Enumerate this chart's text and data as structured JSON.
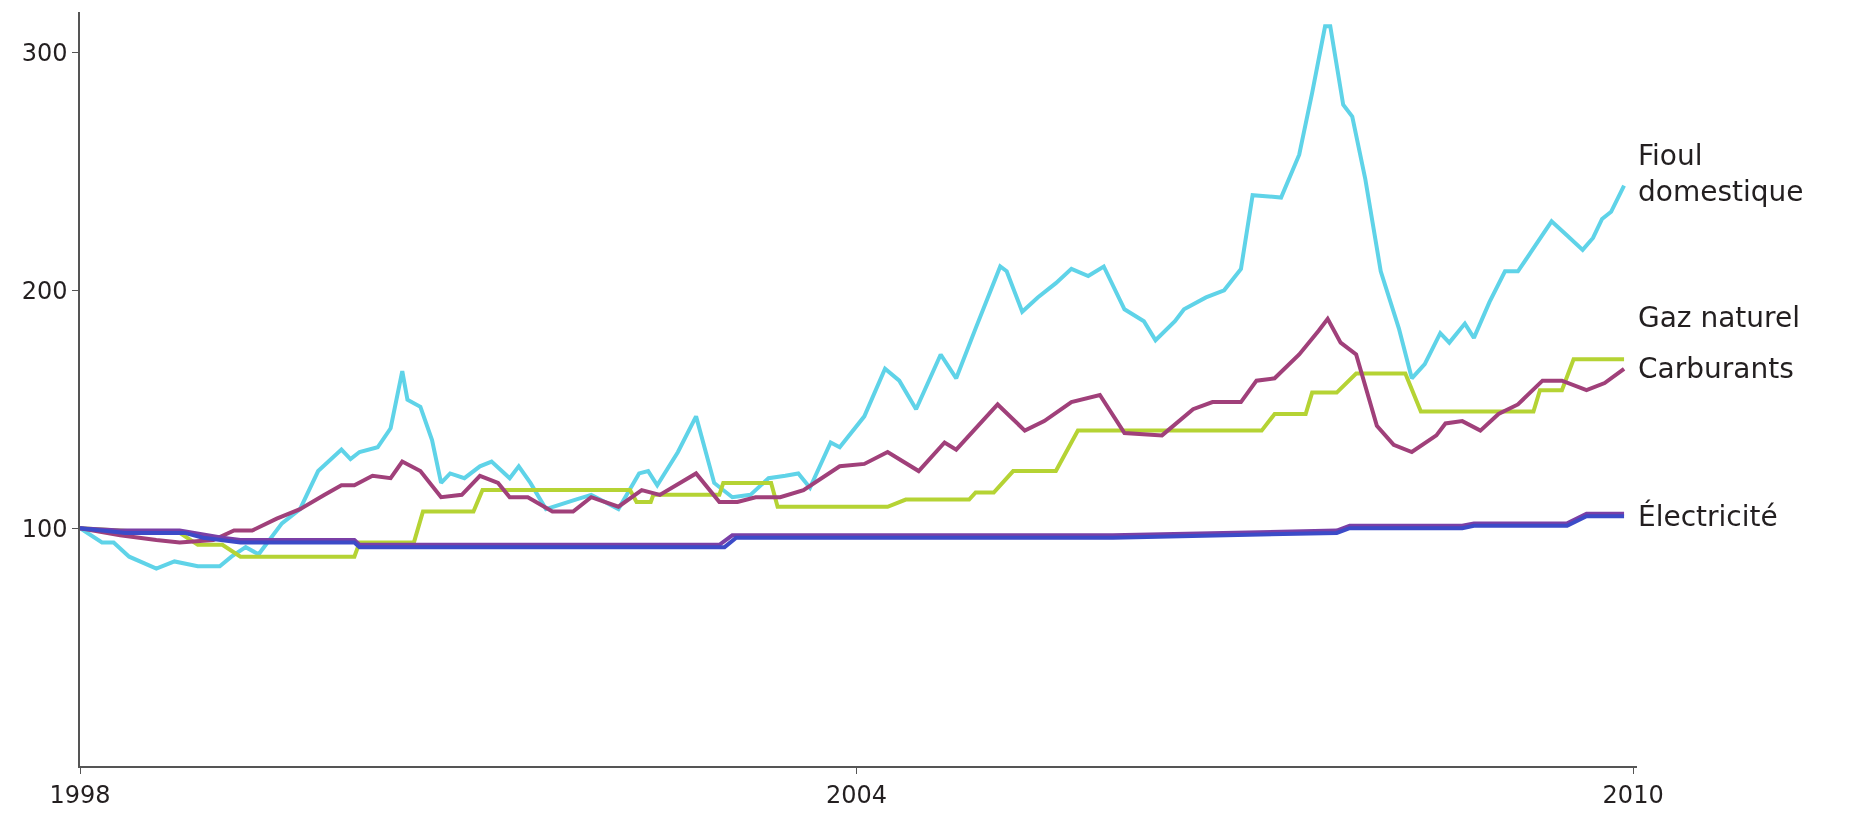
{
  "chart_data": {
    "type": "line",
    "xlim": [
      1998,
      2010.03
    ],
    "xticks": [
      1998,
      2004,
      2010
    ],
    "ylim": [
      0,
      317
    ],
    "yticks": [
      100,
      200,
      300
    ],
    "legend": false,
    "marker": "none",
    "line_style": "solid",
    "series": [
      {
        "name": "Fioul domestique",
        "color": "#5fd3e8",
        "x": [
          1998.0,
          1998.17,
          1998.26,
          1998.38,
          1998.59,
          1998.73,
          1998.91,
          1999.08,
          1999.17,
          1999.28,
          1999.38,
          1999.56,
          1999.7,
          1999.84,
          2000.02,
          2000.09,
          2000.16,
          2000.3,
          2000.4,
          2000.49,
          2000.53,
          2000.63,
          2000.72,
          2000.79,
          2000.86,
          2000.97,
          2001.09,
          2001.18,
          2001.32,
          2001.39,
          2001.48,
          2001.6,
          2001.83,
          2001.95,
          2002.16,
          2002.32,
          2002.39,
          2002.46,
          2002.62,
          2002.76,
          2002.9,
          2003.04,
          2003.18,
          2003.32,
          2003.45,
          2003.55,
          2003.64,
          2003.8,
          2003.87,
          2004.06,
          2004.22,
          2004.33,
          2004.46,
          2004.65,
          2004.77,
          2004.92,
          2005.11,
          2005.16,
          2005.28,
          2005.4,
          2005.54,
          2005.66,
          2005.79,
          2005.91,
          2006.07,
          2006.22,
          2006.31,
          2006.46,
          2006.53,
          2006.7,
          2006.84,
          2006.97,
          2007.06,
          2007.28,
          2007.42,
          2007.52,
          2007.62,
          2007.66,
          2007.76,
          2007.83,
          2007.93,
          2008.05,
          2008.19,
          2008.29,
          2008.39,
          2008.51,
          2008.58,
          2008.7,
          2008.77,
          2008.89,
          2009.01,
          2009.11,
          2009.21,
          2009.37,
          2009.49,
          2009.61,
          2009.69,
          2009.76,
          2009.83,
          2009.93
        ],
        "values": [
          100,
          94,
          94,
          88,
          83,
          86,
          84,
          84,
          88,
          92,
          89,
          102,
          108,
          124,
          133,
          129,
          132,
          134,
          142,
          166,
          154,
          151,
          137,
          119,
          123,
          121,
          126,
          128,
          121,
          126,
          119,
          108,
          112,
          114,
          108,
          123,
          124,
          118,
          132,
          147,
          119,
          113,
          114,
          121,
          122,
          123,
          117,
          136,
          134,
          147,
          167,
          162,
          150,
          173,
          163,
          184,
          210,
          208,
          191,
          197,
          203,
          209,
          206,
          210,
          192,
          187,
          179,
          187,
          192,
          197,
          200,
          209,
          240,
          239,
          257,
          283,
          311,
          311,
          278,
          273,
          247,
          208,
          184,
          163,
          169,
          182,
          178,
          186,
          180,
          195,
          208,
          208,
          216,
          229,
          223,
          217,
          222,
          230,
          233,
          244
        ]
      },
      {
        "name": "Gaz naturel",
        "color": "#b5d334",
        "x": [
          1998.0,
          1998.63,
          1998.77,
          1998.91,
          1999.1,
          1999.24,
          2000.12,
          2000.16,
          2000.58,
          2000.65,
          2001.04,
          2001.11,
          2002.25,
          2002.3,
          2002.41,
          2002.43,
          2002.94,
          2002.97,
          2003.34,
          2003.39,
          2004.24,
          2004.38,
          2004.87,
          2004.92,
          2005.06,
          2005.21,
          2005.54,
          2005.71,
          2007.13,
          2007.23,
          2007.47,
          2007.52,
          2007.71,
          2007.86,
          2008.24,
          2008.36,
          2009.23,
          2009.28,
          2009.45,
          2009.54,
          2009.93
        ],
        "values": [
          100,
          98,
          98,
          93,
          93,
          88,
          88,
          94,
          94,
          107,
          107,
          116,
          116,
          111,
          111,
          114,
          114,
          119,
          119,
          109,
          109,
          112,
          112,
          115,
          115,
          124,
          124,
          141,
          141,
          148,
          148,
          157,
          157,
          165,
          165,
          149,
          149,
          158,
          158,
          171,
          171
        ]
      },
      {
        "name": "Carburants",
        "color": "#a0407a",
        "x": [
          1998.0,
          1998.31,
          1998.59,
          1998.77,
          1999.03,
          1999.19,
          1999.33,
          1999.52,
          1999.7,
          1999.89,
          2000.02,
          2000.12,
          2000.26,
          2000.4,
          2000.49,
          2000.63,
          2000.79,
          2000.95,
          2001.09,
          2001.23,
          2001.32,
          2001.46,
          2001.65,
          2001.81,
          2001.95,
          2002.16,
          2002.34,
          2002.48,
          2002.76,
          2002.94,
          2003.08,
          2003.22,
          2003.41,
          2003.59,
          2003.87,
          2004.06,
          2004.24,
          2004.48,
          2004.68,
          2004.77,
          2005.09,
          2005.3,
          2005.45,
          2005.66,
          2005.88,
          2006.07,
          2006.36,
          2006.6,
          2006.75,
          2006.97,
          2007.09,
          2007.23,
          2007.42,
          2007.57,
          2007.64,
          2007.74,
          2007.86,
          2008.02,
          2008.15,
          2008.29,
          2008.48,
          2008.55,
          2008.68,
          2008.82,
          2008.96,
          2009.11,
          2009.3,
          2009.45,
          2009.64,
          2009.78,
          2009.93
        ],
        "values": [
          100,
          97,
          95,
          94,
          95,
          99,
          99,
          104,
          108,
          114,
          118,
          118,
          122,
          121,
          128,
          124,
          113,
          114,
          122,
          119,
          113,
          113,
          107,
          107,
          113,
          109,
          116,
          114,
          123,
          111,
          111,
          113,
          113,
          116,
          126,
          127,
          132,
          124,
          136,
          133,
          152,
          141,
          145,
          153,
          156,
          140,
          139,
          150,
          153,
          153,
          162,
          163,
          173,
          183,
          188,
          178,
          173,
          143,
          135,
          132,
          139,
          144,
          145,
          141,
          148,
          152,
          162,
          162,
          158,
          161,
          167
        ]
      },
      {
        "color": "#7a3fa6",
        "x": [
          1998.0,
          1998.31,
          1998.77,
          1999.1,
          1999.24,
          2000.12,
          2000.16,
          2002.94,
          2003.04,
          2005.83,
          2005.98,
          2007.71,
          2007.81,
          2008.68,
          2008.77,
          2009.49,
          2009.64,
          2009.93
        ],
        "values": [
          100,
          99,
          99,
          96,
          95,
          95,
          93,
          93,
          97,
          97,
          97,
          99,
          101,
          101,
          102,
          102,
          106,
          106
        ]
      },
      {
        "name": "Électricité",
        "color": "#3c4bc8",
        "x": [
          1998.0,
          1998.35,
          1998.81,
          1998.95,
          1999.24,
          2000.12,
          2000.16,
          2002.98,
          2003.07,
          2005.83,
          2005.98,
          2007.71,
          2007.81,
          2008.68,
          2008.77,
          2009.49,
          2009.64,
          2009.93
        ],
        "values": [
          100,
          98,
          98,
          96,
          94,
          94,
          92,
          92,
          96,
          96,
          96,
          98,
          100,
          100,
          101,
          101,
          105,
          105
        ]
      }
    ]
  }
}
